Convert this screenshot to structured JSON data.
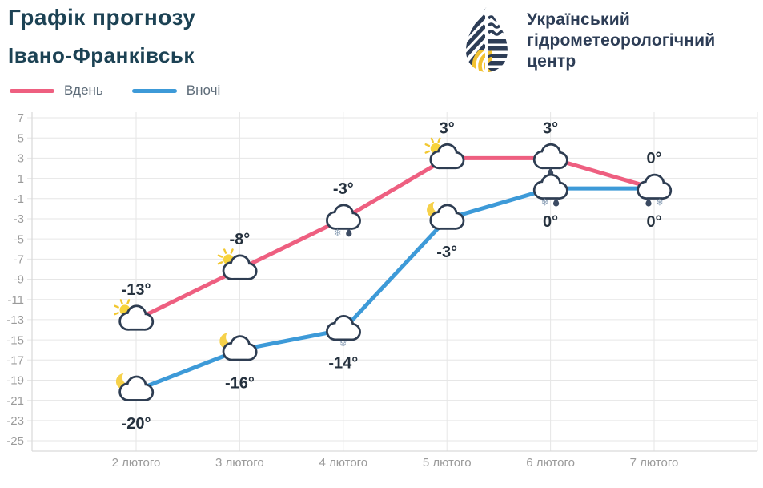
{
  "header": {
    "title": "Графік прогнозу",
    "subtitle": "Івано-Франківськ"
  },
  "org": {
    "line1": "Український",
    "line2": "гідрометеорологічний",
    "line3": "центр"
  },
  "legend": [
    {
      "label": "Вдень",
      "color": "#ee5f80"
    },
    {
      "label": "Вночі",
      "color": "#3d9ad8"
    }
  ],
  "colors": {
    "day_line": "#ee5f80",
    "night_line": "#3d9ad8",
    "title_text": "#1c4254",
    "logo_navy": "#2d3d56",
    "logo_yellow": "#f2c232",
    "cloud_outline": "#2e3d52",
    "sun_yellow": "#f7d33c",
    "moon_yellow": "#f6d14a",
    "snow_glyph": "#8ea2b8",
    "rain_glyph": "#3b4a62",
    "grid": "#e6e6e6",
    "axis": "#d9d9d9",
    "tick_text": "#9b9b9b",
    "temp_text": "#25313e"
  },
  "chart_data": {
    "type": "line",
    "title": "Графік прогнозу",
    "location": "Івано-Франківськ",
    "categories": [
      "2 лютого",
      "3 лютого",
      "4 лютого",
      "5 лютого",
      "6 лютого",
      "7 лютого"
    ],
    "series": [
      {
        "name": "Вдень",
        "color": "#ee5f80",
        "values": [
          -13,
          -8,
          -3,
          3,
          3,
          0
        ],
        "labels": [
          "-13°",
          "-8°",
          "-3°",
          "3°",
          "3°",
          "0°"
        ],
        "icons": [
          "sun-cloud",
          "sun-cloud",
          "cloud-snow-rain",
          "sun-cloud",
          "cloud-rain",
          "cloud-rain-snow"
        ],
        "label_side": "above"
      },
      {
        "name": "Вночі",
        "color": "#3d9ad8",
        "values": [
          -20,
          -16,
          -14,
          -3,
          0,
          0
        ],
        "labels": [
          "-20°",
          "-16°",
          "-14°",
          "-3°",
          "0°",
          "0°"
        ],
        "icons": [
          "moon-cloud",
          "moon-cloud",
          "cloud-snow",
          "moon-cloud",
          "cloud-snow-rain",
          "none"
        ],
        "label_side": "below"
      }
    ],
    "yticks": [
      7,
      5,
      3,
      1,
      -1,
      -3,
      -5,
      -7,
      -9,
      -11,
      -13,
      -15,
      -17,
      -19,
      -21,
      -23,
      -25
    ],
    "ylim": [
      -26,
      8
    ],
    "grid": true,
    "legend_position": "top-left"
  }
}
